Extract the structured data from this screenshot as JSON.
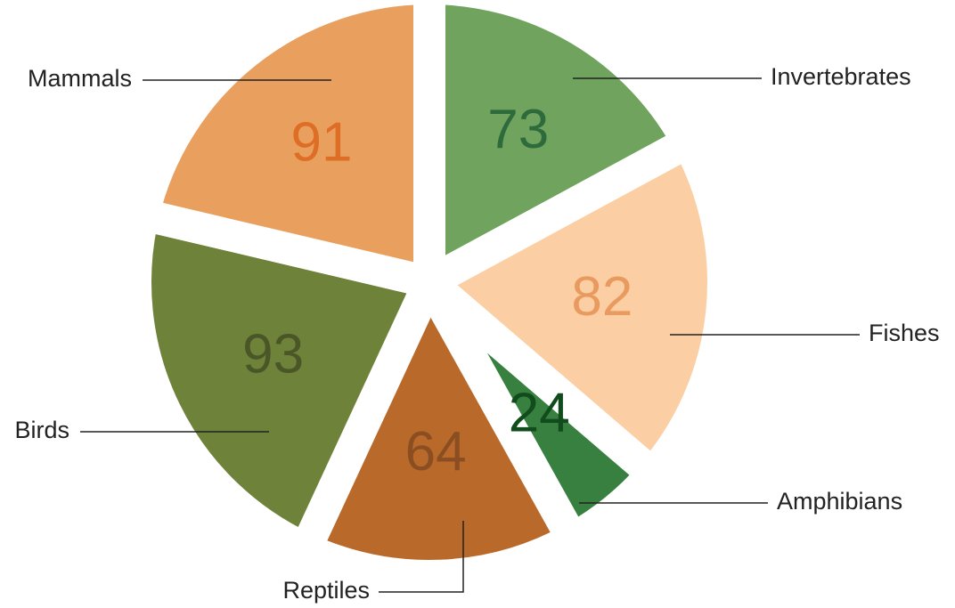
{
  "chart_data": {
    "type": "pie",
    "categories": [
      "Invertebrates",
      "Fishes",
      "Amphibians",
      "Reptiles",
      "Birds",
      "Mammals"
    ],
    "values": [
      73,
      82,
      24,
      64,
      93,
      91
    ],
    "colors": [
      "#6fa35e",
      "#fbcfa3",
      "#37803f",
      "#b96a2a",
      "#6e8239",
      "#e9a05f"
    ],
    "label_colors": [
      "#2e6b3c",
      "#e99a5f",
      "#114d1c",
      "#8a4e22",
      "#4a5628",
      "#de6d25"
    ]
  }
}
